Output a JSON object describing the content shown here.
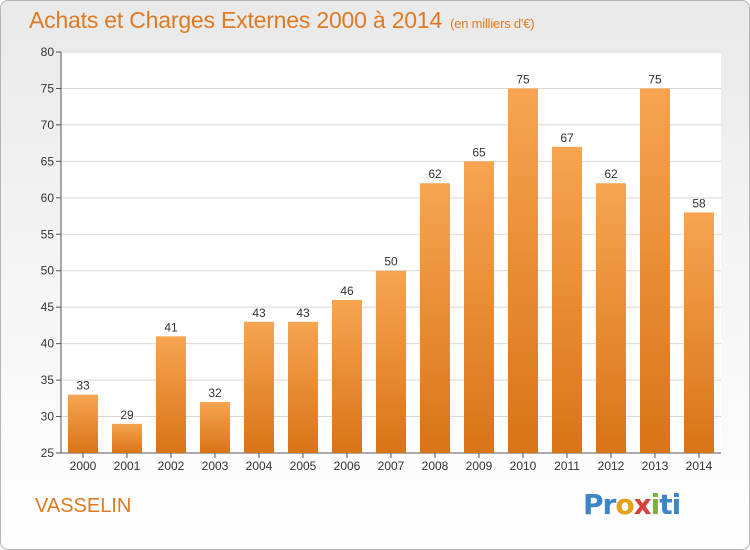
{
  "title": "Achats et Charges Externes 2000 à 2014",
  "unit": "(en milliers d'€)",
  "commune": "VASSELIN",
  "logo": {
    "p1": "Pr",
    "p2": "o",
    "p3": "x",
    "p4": "i",
    "p5": "ti"
  },
  "colors": {
    "bar_light": "#f6a552",
    "bar_dark": "#d97417",
    "title": "#e07a22"
  },
  "chart_data": {
    "type": "bar",
    "title": "Achats et Charges Externes 2000 à 2014",
    "xlabel": "",
    "ylabel": "",
    "ylim": [
      25,
      80
    ],
    "yticks": [
      25,
      30,
      35,
      40,
      45,
      50,
      55,
      60,
      65,
      70,
      75,
      80
    ],
    "grid": true,
    "categories": [
      "2000",
      "2001",
      "2002",
      "2003",
      "2004",
      "2005",
      "2006",
      "2007",
      "2008",
      "2009",
      "2010",
      "2011",
      "2012",
      "2013",
      "2014"
    ],
    "values": [
      33,
      29,
      41,
      32,
      43,
      43,
      46,
      50,
      62,
      65,
      75,
      67,
      62,
      75,
      58
    ]
  }
}
